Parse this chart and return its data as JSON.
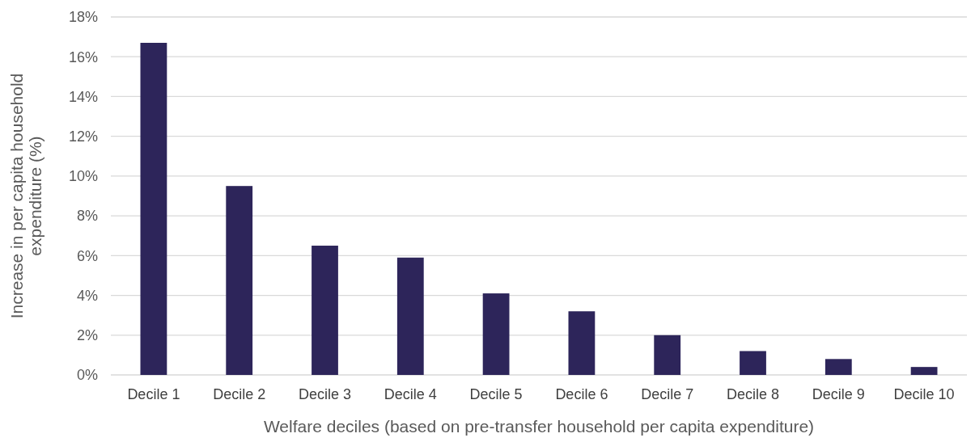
{
  "chart_data": {
    "type": "bar",
    "xlabel": "Welfare deciles (based on pre-transfer household per capita expenditure)",
    "ylabel": "Increase in per capita household expenditure (%)",
    "categories": [
      "Decile 1",
      "Decile 2",
      "Decile 3",
      "Decile 4",
      "Decile 5",
      "Decile 6",
      "Decile 7",
      "Decile 8",
      "Decile 9",
      "Decile 10"
    ],
    "values": [
      16.7,
      9.5,
      6.5,
      5.9,
      4.1,
      3.2,
      2.0,
      1.2,
      0.8,
      0.4
    ],
    "color": "#2d255a",
    "ylim": [
      0,
      18
    ],
    "yticks": [
      {
        "value": 0,
        "label": "0%"
      },
      {
        "value": 2,
        "label": "2%"
      },
      {
        "value": 4,
        "label": "4%"
      },
      {
        "value": 6,
        "label": "6%"
      },
      {
        "value": 8,
        "label": "8%"
      },
      {
        "value": 10,
        "label": "10%"
      },
      {
        "value": 12,
        "label": "12%"
      },
      {
        "value": 14,
        "label": "14%"
      },
      {
        "value": 16,
        "label": "16%"
      },
      {
        "value": 18,
        "label": "18%"
      }
    ],
    "grid": "y"
  }
}
